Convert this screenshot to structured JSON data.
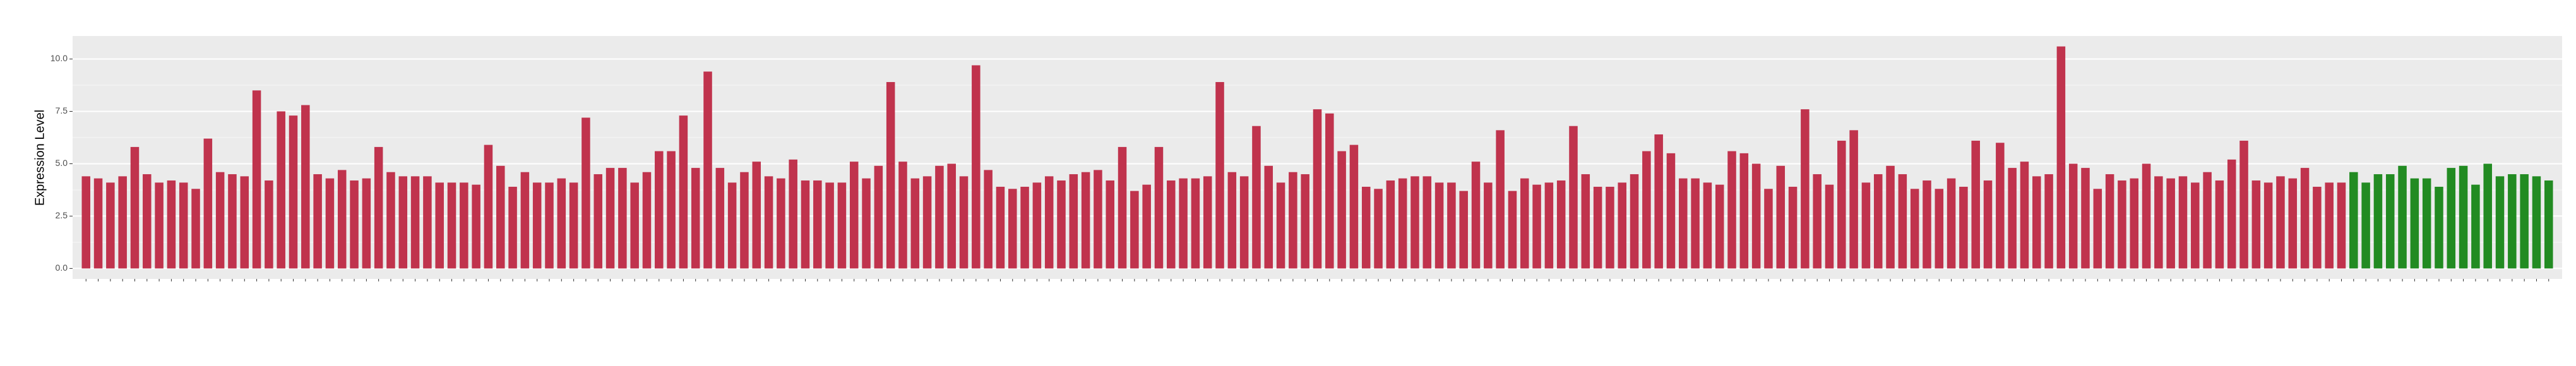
{
  "chart_data": {
    "type": "bar",
    "y_label": "Expression Level",
    "ylim": [
      -0.5,
      11.1
    ],
    "yticks": [
      {
        "value": 0,
        "label": "0.0"
      },
      {
        "value": 2.5,
        "label": "2.5"
      },
      {
        "value": 5,
        "label": "5.0"
      },
      {
        "value": 7.5,
        "label": "7.5"
      },
      {
        "value": 10,
        "label": "10.0"
      }
    ],
    "grid": true,
    "categories": [
      null,
      null,
      null,
      null,
      null,
      null,
      null,
      null,
      null,
      null,
      null,
      null,
      null,
      null,
      null,
      null,
      null,
      null,
      null,
      null,
      null,
      null,
      null,
      null,
      null,
      null,
      null,
      null,
      null,
      null,
      null,
      null,
      null,
      null,
      null,
      null,
      null,
      null,
      null,
      null,
      null,
      null,
      null,
      null,
      null,
      null,
      null,
      null,
      null,
      null,
      null,
      null,
      null,
      null,
      null,
      null,
      null,
      null,
      null,
      null,
      null,
      null,
      null,
      null,
      null,
      null,
      null,
      null,
      null,
      null,
      null,
      null,
      null,
      null,
      null,
      null,
      null,
      null,
      null,
      null,
      null,
      null,
      null,
      null,
      null,
      null,
      null,
      null,
      null,
      null,
      null,
      null,
      null,
      null,
      null,
      null,
      null,
      null,
      null,
      null,
      null,
      null,
      null,
      null,
      null,
      null,
      null,
      null,
      null,
      null,
      null,
      null,
      null,
      null,
      null,
      null,
      null,
      null,
      null,
      null,
      null,
      null,
      null,
      null,
      null,
      null,
      null,
      null,
      null,
      null,
      null,
      null,
      null,
      null,
      null,
      null,
      null,
      null,
      null,
      null,
      null,
      null,
      null,
      null,
      null,
      null,
      null,
      null,
      null,
      null,
      null,
      null,
      null,
      null,
      null,
      null,
      null,
      null,
      null,
      null,
      null,
      null,
      null,
      null,
      null,
      null,
      null,
      null,
      null,
      null,
      null,
      null,
      null,
      null,
      null,
      null,
      null,
      null,
      null,
      null,
      null,
      null,
      null,
      null,
      null,
      null,
      null,
      null,
      null,
      null,
      null,
      null,
      null,
      null,
      null,
      null,
      null,
      null,
      null,
      null,
      null,
      null,
      null
    ],
    "values": [
      4.4,
      4.3,
      4.1,
      4.4,
      5.8,
      4.5,
      4.1,
      4.2,
      4.1,
      3.8,
      6.2,
      4.6,
      4.5,
      4.4,
      8.5,
      4.2,
      7.5,
      7.3,
      7.8,
      4.5,
      4.3,
      4.7,
      4.2,
      4.3,
      5.8,
      4.6,
      4.4,
      4.4,
      4.4,
      4.1,
      4.1,
      4.1,
      4.0,
      5.9,
      4.9,
      3.9,
      4.6,
      4.1,
      4.1,
      4.3,
      4.1,
      7.2,
      4.5,
      4.8,
      4.8,
      4.1,
      4.6,
      5.6,
      5.6,
      7.3,
      4.8,
      9.4,
      4.8,
      4.1,
      4.6,
      5.1,
      4.4,
      4.3,
      5.2,
      4.2,
      4.2,
      4.1,
      4.1,
      5.1,
      4.3,
      4.9,
      8.9,
      5.1,
      4.3,
      4.4,
      4.9,
      5.0,
      4.4,
      9.7,
      4.7,
      3.9,
      3.8,
      3.9,
      4.1,
      4.4,
      4.2,
      4.5,
      4.6,
      4.7,
      4.2,
      5.8,
      3.7,
      4.0,
      5.8,
      4.2,
      4.3,
      4.3,
      4.4,
      8.9,
      4.6,
      4.4,
      6.8,
      4.9,
      4.1,
      4.6,
      4.5,
      7.6,
      7.4,
      5.6,
      5.9,
      3.9,
      3.8,
      4.2,
      4.3,
      4.4,
      4.4,
      4.1,
      4.1,
      3.7,
      5.1,
      4.1,
      6.6,
      3.7,
      4.3,
      4.0,
      4.1,
      4.2,
      6.8,
      4.5,
      3.9,
      3.9,
      4.1,
      4.5,
      5.6,
      6.4,
      5.5,
      4.3,
      4.3,
      4.1,
      4.0,
      5.6,
      5.5,
      5.0,
      3.8,
      4.9,
      3.9,
      7.6,
      4.5,
      4.0,
      6.1,
      6.6,
      4.1,
      4.5,
      4.9,
      4.5,
      3.8,
      4.2,
      3.8,
      4.3,
      3.9,
      6.1,
      4.2,
      6.0,
      4.8,
      5.1,
      4.4,
      4.5,
      10.6,
      5.0,
      4.8,
      3.8,
      4.5,
      4.2,
      4.3,
      5.0,
      4.4,
      4.3,
      4.4,
      4.1,
      4.6,
      4.2,
      5.2,
      6.1,
      4.2,
      4.1,
      4.4,
      4.3,
      4.8,
      3.9,
      4.1,
      4.1,
      4.6,
      4.1,
      4.5,
      4.5,
      4.9,
      4.3,
      4.3,
      3.9,
      4.8,
      4.9,
      4.0,
      5.0,
      4.4,
      4.5,
      4.5,
      4.4,
      4.2
    ],
    "colors": [
      "#c0334d",
      "#c0334d",
      "#c0334d",
      "#c0334d",
      "#c0334d",
      "#c0334d",
      "#c0334d",
      "#c0334d",
      "#c0334d",
      "#c0334d",
      "#c0334d",
      "#c0334d",
      "#c0334d",
      "#c0334d",
      "#c0334d",
      "#c0334d",
      "#c0334d",
      "#c0334d",
      "#c0334d",
      "#c0334d",
      "#c0334d",
      "#c0334d",
      "#c0334d",
      "#c0334d",
      "#c0334d",
      "#c0334d",
      "#c0334d",
      "#c0334d",
      "#c0334d",
      "#c0334d",
      "#c0334d",
      "#c0334d",
      "#c0334d",
      "#c0334d",
      "#c0334d",
      "#c0334d",
      "#c0334d",
      "#c0334d",
      "#c0334d",
      "#c0334d",
      "#c0334d",
      "#c0334d",
      "#c0334d",
      "#c0334d",
      "#c0334d",
      "#c0334d",
      "#c0334d",
      "#c0334d",
      "#c0334d",
      "#c0334d",
      "#c0334d",
      "#c0334d",
      "#c0334d",
      "#c0334d",
      "#c0334d",
      "#c0334d",
      "#c0334d",
      "#c0334d",
      "#c0334d",
      "#c0334d",
      "#c0334d",
      "#c0334d",
      "#c0334d",
      "#c0334d",
      "#c0334d",
      "#c0334d",
      "#c0334d",
      "#c0334d",
      "#c0334d",
      "#c0334d",
      "#c0334d",
      "#c0334d",
      "#c0334d",
      "#c0334d",
      "#c0334d",
      "#c0334d",
      "#c0334d",
      "#c0334d",
      "#c0334d",
      "#c0334d",
      "#c0334d",
      "#c0334d",
      "#c0334d",
      "#c0334d",
      "#c0334d",
      "#c0334d",
      "#c0334d",
      "#c0334d",
      "#c0334d",
      "#c0334d",
      "#c0334d",
      "#c0334d",
      "#c0334d",
      "#c0334d",
      "#c0334d",
      "#c0334d",
      "#c0334d",
      "#c0334d",
      "#c0334d",
      "#c0334d",
      "#c0334d",
      "#c0334d",
      "#c0334d",
      "#c0334d",
      "#c0334d",
      "#c0334d",
      "#c0334d",
      "#c0334d",
      "#c0334d",
      "#c0334d",
      "#c0334d",
      "#c0334d",
      "#c0334d",
      "#c0334d",
      "#c0334d",
      "#c0334d",
      "#c0334d",
      "#c0334d",
      "#c0334d",
      "#c0334d",
      "#c0334d",
      "#c0334d",
      "#c0334d",
      "#c0334d",
      "#c0334d",
      "#c0334d",
      "#c0334d",
      "#c0334d",
      "#c0334d",
      "#c0334d",
      "#c0334d",
      "#c0334d",
      "#c0334d",
      "#c0334d",
      "#c0334d",
      "#c0334d",
      "#c0334d",
      "#c0334d",
      "#c0334d",
      "#c0334d",
      "#c0334d",
      "#c0334d",
      "#c0334d",
      "#c0334d",
      "#c0334d",
      "#c0334d",
      "#c0334d",
      "#c0334d",
      "#c0334d",
      "#c0334d",
      "#c0334d",
      "#c0334d",
      "#c0334d",
      "#c0334d",
      "#c0334d",
      "#c0334d",
      "#c0334d",
      "#c0334d",
      "#c0334d",
      "#c0334d",
      "#c0334d",
      "#c0334d",
      "#c0334d",
      "#c0334d",
      "#c0334d",
      "#c0334d",
      "#c0334d",
      "#c0334d",
      "#c0334d",
      "#c0334d",
      "#c0334d",
      "#c0334d",
      "#c0334d",
      "#c0334d",
      "#c0334d",
      "#c0334d",
      "#c0334d",
      "#c0334d",
      "#c0334d",
      "#c0334d",
      "#c0334d",
      "#c0334d",
      "#c0334d",
      "#c0334d",
      "#c0334d",
      "#c0334d",
      "#228b22",
      "#228b22",
      "#228b22",
      "#228b22",
      "#228b22",
      "#228b22",
      "#228b22",
      "#228b22",
      "#228b22",
      "#228b22",
      "#228b22",
      "#228b22",
      "#228b22",
      "#228b22",
      "#228b22",
      "#228b22",
      "#228b22",
      "#228b22",
      "#228b22",
      "#228b22",
      "#228b22"
    ]
  }
}
